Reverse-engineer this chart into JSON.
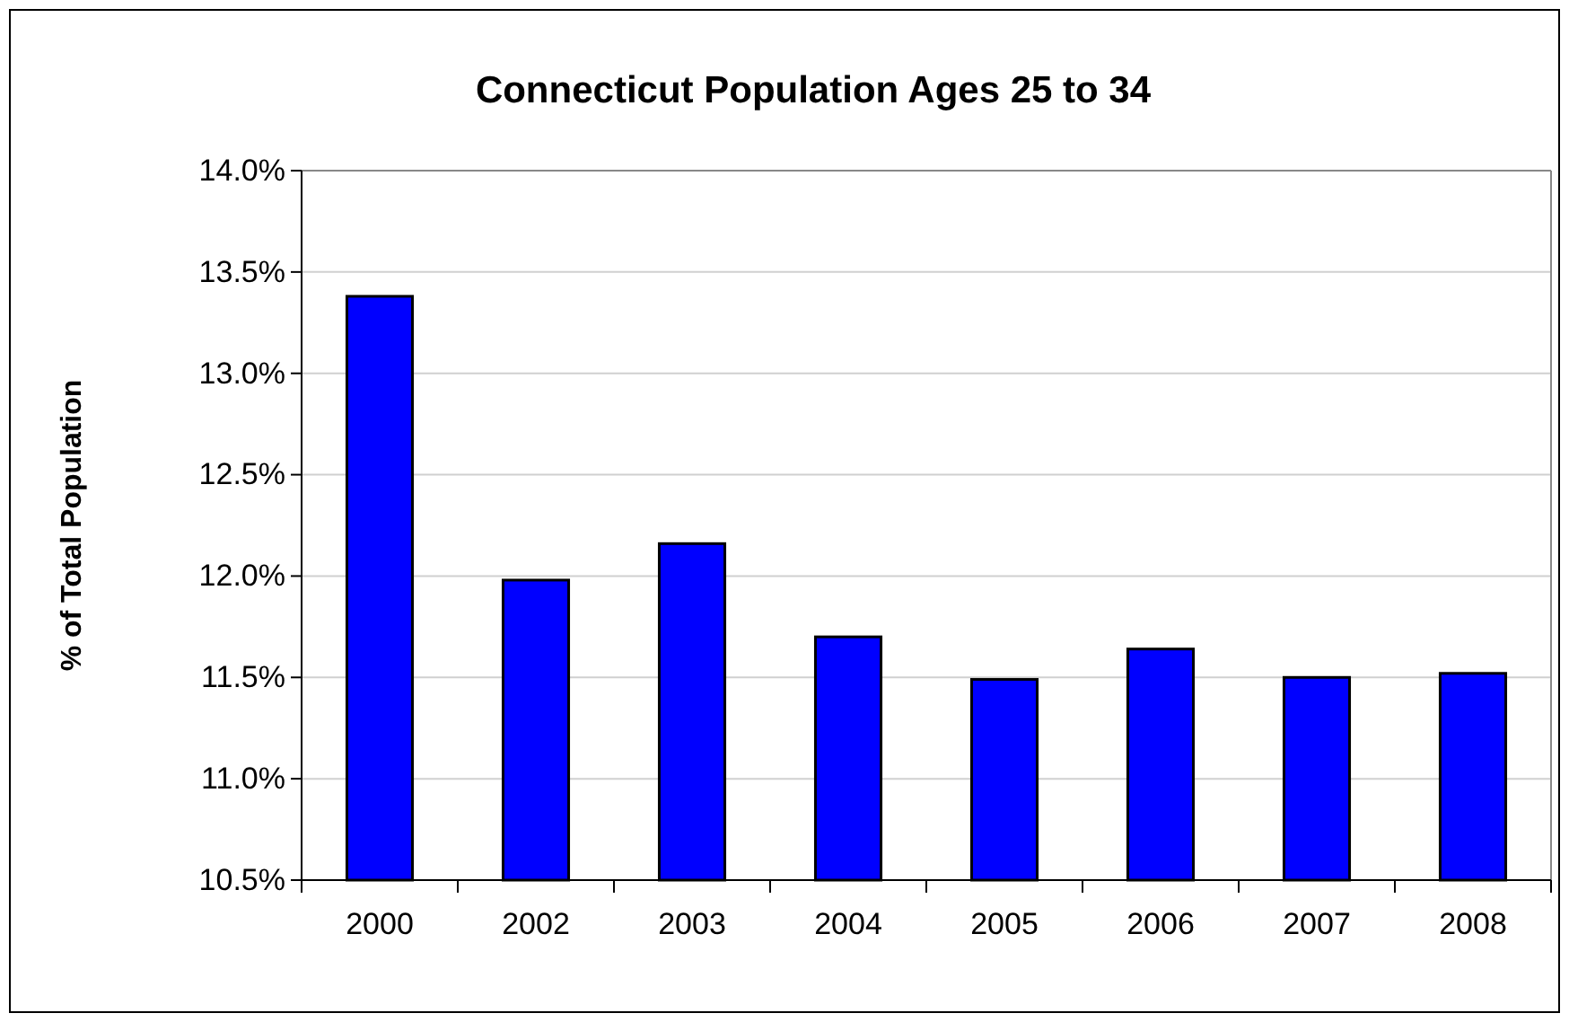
{
  "chart_data": {
    "type": "bar",
    "title": "Connecticut Population Ages 25 to 34",
    "ylabel": "% of Total Population",
    "categories": [
      "2000",
      "2002",
      "2003",
      "2004",
      "2005",
      "2006",
      "2007",
      "2008"
    ],
    "values": [
      13.38,
      11.98,
      12.16,
      11.7,
      11.49,
      11.64,
      11.5,
      11.52
    ],
    "color": "#0000ff",
    "ylim": [
      10.5,
      14.0
    ],
    "yticks": [
      {
        "value": 10.5,
        "label": "10.5%"
      },
      {
        "value": 11.0,
        "label": "11.0%"
      },
      {
        "value": 11.5,
        "label": "11.5%"
      },
      {
        "value": 12.0,
        "label": "12.0%"
      },
      {
        "value": 12.5,
        "label": "12.5%"
      },
      {
        "value": 13.0,
        "label": "13.0%"
      },
      {
        "value": 13.5,
        "label": "13.5%"
      },
      {
        "value": 14.0,
        "label": "14.0%"
      }
    ],
    "grid": "y"
  }
}
